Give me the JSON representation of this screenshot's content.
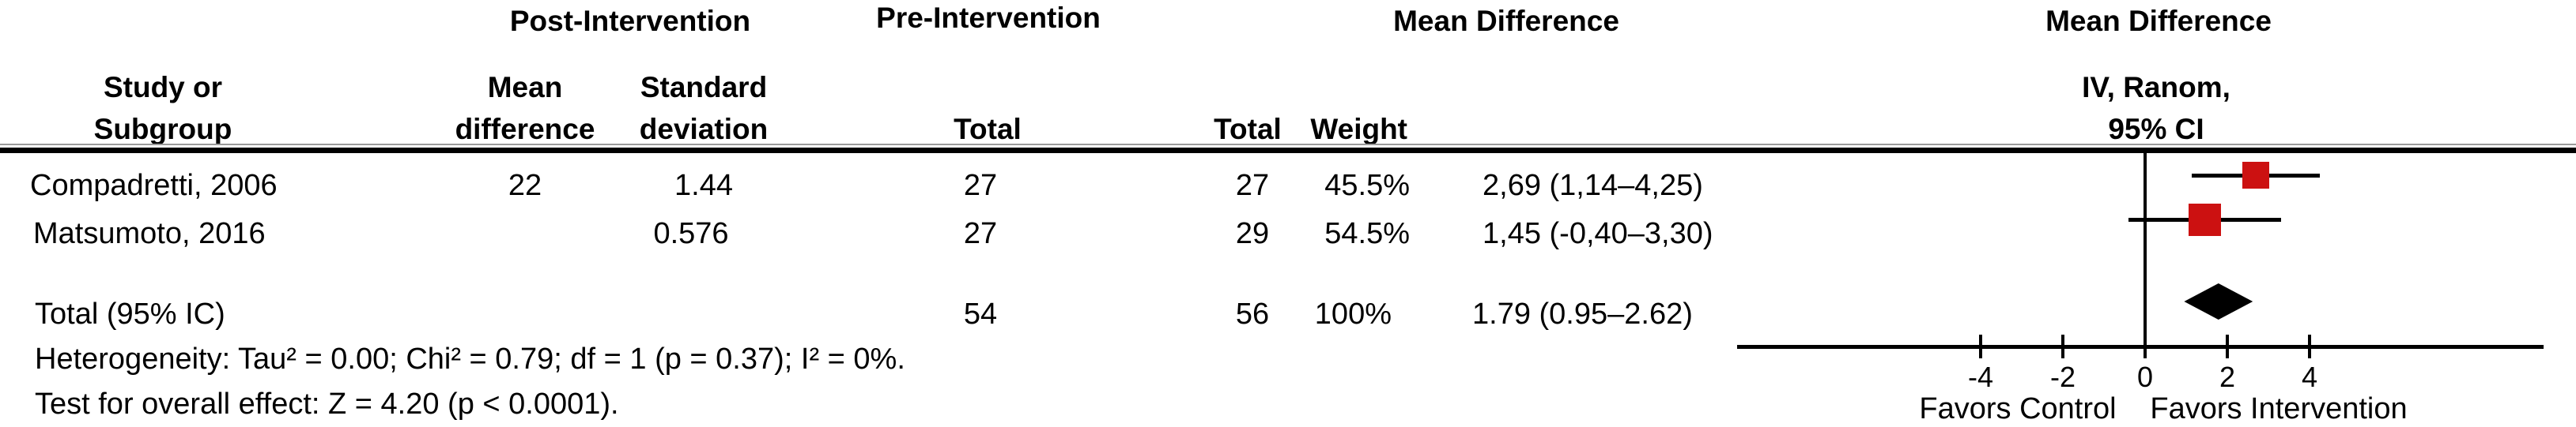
{
  "figure": {
    "group_headers": {
      "post_intervention": "Post-Intervention",
      "pre_intervention": "Pre-Intervention",
      "mean_difference_text": "Mean Difference",
      "mean_difference_plot": "Mean Difference"
    },
    "column_headers": {
      "study_line1": "Study or",
      "study_line2": "Subgroup",
      "mean_line1": "Mean",
      "mean_line2": "difference",
      "sd_line1": "Standard",
      "sd_line2": "deviation",
      "total_post": "Total",
      "total_pre": "Total",
      "weight": "Weight",
      "method_line1": "IV, Ranom,",
      "method_line2": "95% CI"
    }
  },
  "rows": [
    {
      "study": "Compadretti, 2006",
      "mean_difference": "22",
      "sd": "1.44",
      "total_post": "27",
      "total_pre": "27",
      "weight": "45.5%",
      "estimate": "2,69 (1,14–4,25)"
    },
    {
      "study": "Matsumoto, 2016",
      "mean_difference": "",
      "sd": "0.576",
      "total_post": "27",
      "total_pre": "29",
      "weight": "54.5%",
      "estimate": "1,45 (-0,40–3,30)"
    }
  ],
  "total_row": {
    "label": "Total (95% IC)",
    "total_post": "54",
    "total_pre": "56",
    "weight": "100%",
    "estimate": "1.79 (0.95–2.62)"
  },
  "footnotes": {
    "heterogeneity": "Heterogeneity: Tau² = 0.00; Chi² = 0.79; df = 1 (p = 0.37); I² = 0%.",
    "overall_effect": "Test for overall effect: Z = 4.20 (p ˂ 0.0001)."
  },
  "chart_data": {
    "type": "forest",
    "effect_measure": "Mean Difference",
    "method": "IV, Ranom, 95% CI",
    "axis": {
      "ticks": [
        -4,
        -2,
        0,
        2,
        4
      ],
      "tick_labels": [
        "-4",
        "-2",
        "0",
        "2",
        "4"
      ],
      "line_range": [
        -10,
        9.7
      ],
      "zero_line_at": 0,
      "favors_left": "Favors Control",
      "favors_right": "Favors Intervention"
    },
    "studies": [
      {
        "name": "Compadretti, 2006",
        "md": 2.69,
        "ci_low": 1.14,
        "ci_high": 4.25,
        "weight_pct": 45.5
      },
      {
        "name": "Matsumoto, 2016",
        "md": 1.45,
        "ci_low": -0.4,
        "ci_high": 3.3,
        "weight_pct": 54.5
      }
    ],
    "total": {
      "md": 1.79,
      "ci_low": 0.95,
      "ci_high": 2.62,
      "weight_pct": 100
    },
    "heterogeneity": {
      "tau2": 0.0,
      "chi2": 0.79,
      "df": 1,
      "p": 0.37,
      "i2_pct": 0
    },
    "overall_effect": {
      "z": 4.2,
      "p": "<0.0001"
    },
    "marker_color": "#cc1111",
    "diamond_color": "#000000",
    "line_color": "#000000"
  }
}
